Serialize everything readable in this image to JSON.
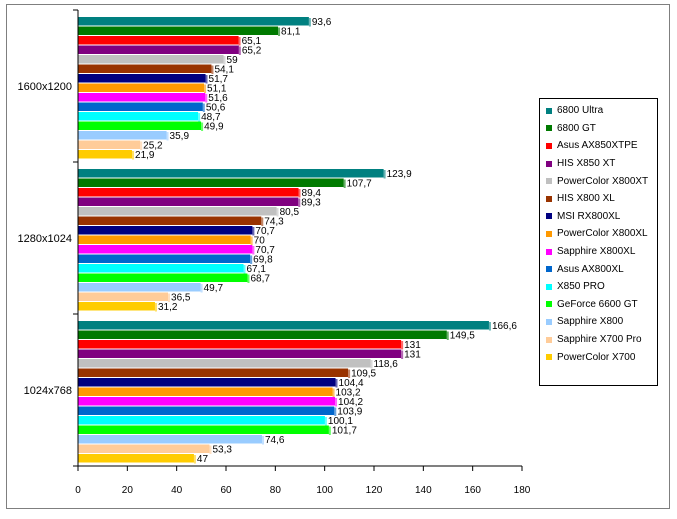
{
  "chart_data": {
    "type": "bar",
    "orientation": "horizontal",
    "title": "",
    "xlabel": "",
    "ylabel": "",
    "xlim": [
      0,
      180
    ],
    "x_ticks": [
      0,
      20,
      40,
      60,
      80,
      100,
      120,
      140,
      160,
      180
    ],
    "categories": [
      "1600x1200",
      "1280x1024",
      "1024x768"
    ],
    "legend_position": "right",
    "grid": false,
    "series": [
      {
        "name": "6800 Ultra",
        "color": "#008080",
        "values": [
          93.6,
          123.9,
          166.6
        ],
        "labels": [
          "93,6",
          "123,9",
          "166,6"
        ]
      },
      {
        "name": "6800 GT",
        "color": "#007a00",
        "values": [
          81.1,
          107.7,
          149.5
        ],
        "labels": [
          "81,1",
          "107,7",
          "149,5"
        ]
      },
      {
        "name": "Asus AX850XTPE",
        "color": "#ff0000",
        "values": [
          65.1,
          89.4,
          131
        ],
        "labels": [
          "65,1",
          "89,4",
          "131"
        ]
      },
      {
        "name": "HIS X850 XT",
        "color": "#800080",
        "values": [
          65.2,
          89.3,
          131
        ],
        "labels": [
          "65,2",
          "89,3",
          "131"
        ]
      },
      {
        "name": "PowerColor X800XT",
        "color": "#c0c0c0",
        "values": [
          59,
          80.5,
          118.6
        ],
        "labels": [
          "59",
          "80,5",
          "118,6"
        ]
      },
      {
        "name": "HIS X800 XL",
        "color": "#993300",
        "values": [
          54.1,
          74.3,
          109.5
        ],
        "labels": [
          "54,1",
          "74,3",
          "109,5"
        ]
      },
      {
        "name": "MSI RX800XL",
        "color": "#000080",
        "values": [
          51.7,
          70.7,
          104.4
        ],
        "labels": [
          "51,7",
          "70,7",
          "104,4"
        ]
      },
      {
        "name": "PowerColor X800XL",
        "color": "#ff9900",
        "values": [
          51.1,
          70,
          103.2
        ],
        "labels": [
          "51,1",
          "70",
          "103,2"
        ]
      },
      {
        "name": "Sapphire X800XL",
        "color": "#ff00ff",
        "values": [
          51.6,
          70.7,
          104.2
        ],
        "labels": [
          "51,6",
          "70,7",
          "104,2"
        ]
      },
      {
        "name": "Asus AX800XL",
        "color": "#0066cc",
        "values": [
          50.6,
          69.8,
          103.9
        ],
        "labels": [
          "50,6",
          "69,8",
          "103,9"
        ]
      },
      {
        "name": "X850 PRO",
        "color": "#00ffff",
        "values": [
          48.7,
          67.1,
          100.1
        ],
        "labels": [
          "48,7",
          "67,1",
          "100,1"
        ]
      },
      {
        "name": "GeForce 6600 GT",
        "color": "#00ff00",
        "values": [
          49.9,
          68.7,
          101.7
        ],
        "labels": [
          "49,9",
          "68,7",
          "101,7"
        ]
      },
      {
        "name": "Sapphire X800",
        "color": "#99ccff",
        "values": [
          35.9,
          49.7,
          74.6
        ],
        "labels": [
          "35,9",
          "49,7",
          "74,6"
        ]
      },
      {
        "name": "Sapphire X700 Pro",
        "color": "#ffcc99",
        "values": [
          25.2,
          36.5,
          53.3
        ],
        "labels": [
          "25,2",
          "36,5",
          "53,3"
        ]
      },
      {
        "name": "PowerColor X700",
        "color": "#ffcc00",
        "values": [
          21.9,
          31.2,
          47
        ],
        "labels": [
          "21,9",
          "31,2",
          "47"
        ]
      }
    ]
  }
}
